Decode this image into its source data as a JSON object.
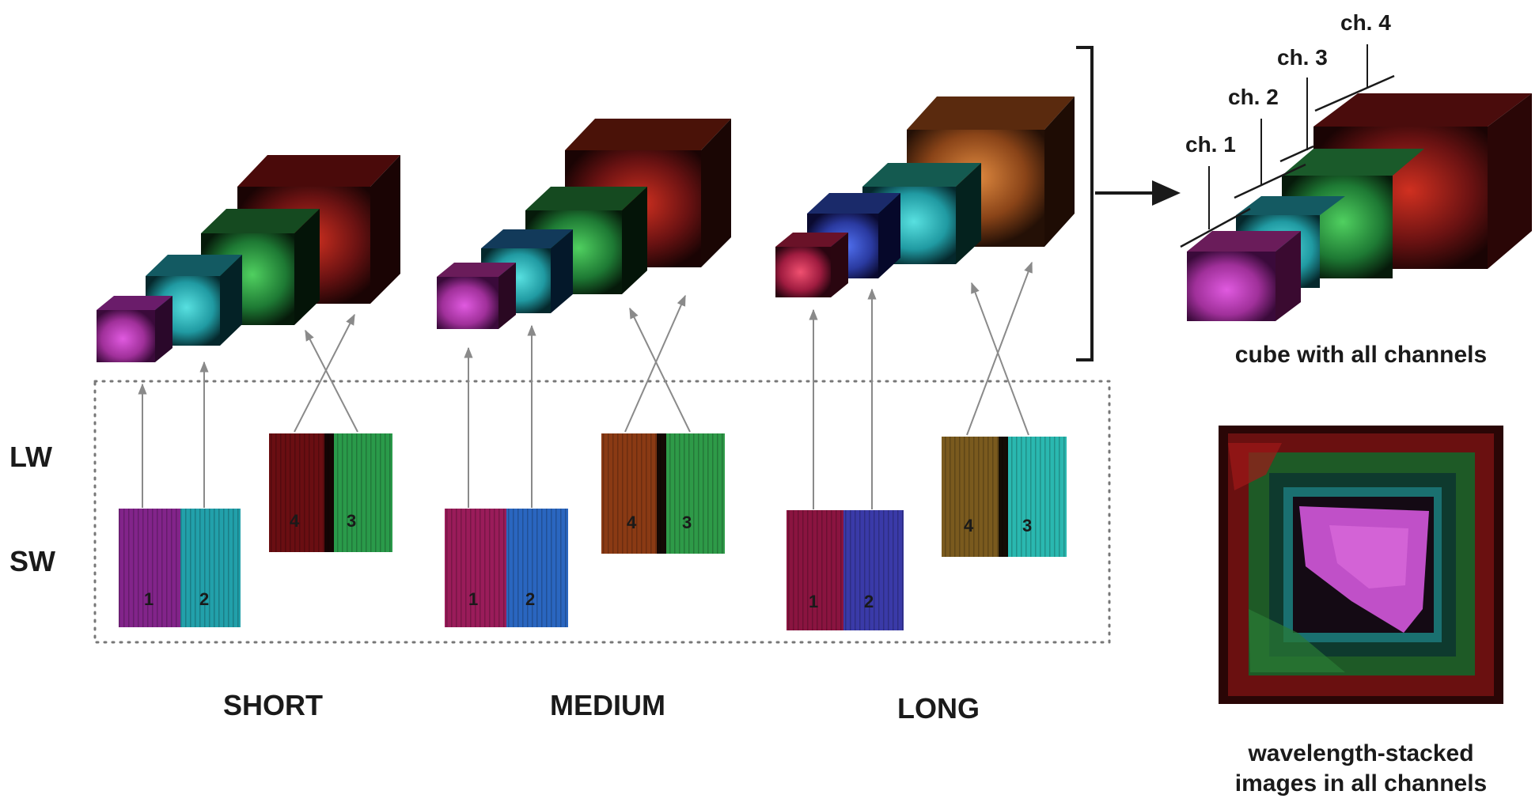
{
  "row_labels": {
    "lw": "LW",
    "sw": "SW"
  },
  "groups": [
    {
      "id": "short",
      "label": "SHORT",
      "sw_numbers": [
        "1",
        "2"
      ],
      "lw_numbers": [
        "4",
        "3"
      ]
    },
    {
      "id": "medium",
      "label": "MEDIUM",
      "sw_numbers": [
        "1",
        "2"
      ],
      "lw_numbers": [
        "4",
        "3"
      ]
    },
    {
      "id": "long",
      "label": "LONG",
      "sw_numbers": [
        "1",
        "2"
      ],
      "lw_numbers": [
        "4",
        "3"
      ]
    }
  ],
  "channel_labels": [
    "ch. 1",
    "ch. 2",
    "ch. 3",
    "ch. 4"
  ],
  "captions": {
    "cube": "cube with all channels",
    "stacked_line1": "wavelength-stacked",
    "stacked_line2": "images in all channels"
  },
  "colors": {
    "ch1": "#b0329e",
    "ch2": "#2aa7b0",
    "ch3": "#2e9a48",
    "ch4": "#9a2020",
    "ch4_long": "#b3652c",
    "ch2_medium": "#2a68c0"
  }
}
